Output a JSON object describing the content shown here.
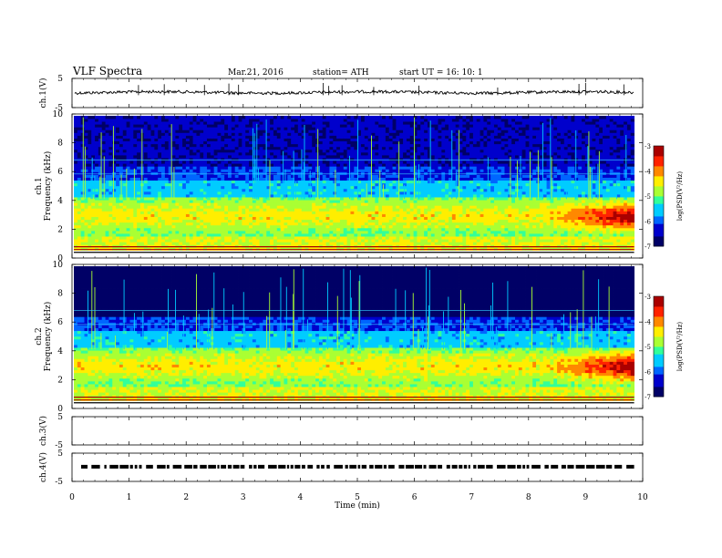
{
  "header": {
    "title": "VLF  Spectra",
    "date": "Mar.21, 2016",
    "station": "station= ATH",
    "start": "start  UT  =    16: 10: 1"
  },
  "chart_data": {
    "type": "heatmap",
    "x": {
      "label": "Time  (min)",
      "ticks": [
        "0",
        "1",
        "2",
        "3",
        "4",
        "5",
        "6",
        "7",
        "8",
        "9",
        "10"
      ],
      "range": [
        0,
        10
      ],
      "data_end": 9.85
    },
    "panels": [
      {
        "id": "ch1v",
        "kind": "waveform",
        "ylabel": "ch.1(V)",
        "yticks": [
          "5",
          "-5"
        ],
        "ylim": [
          -5,
          5
        ],
        "level": 0.2
      },
      {
        "id": "ch1",
        "kind": "spectrogram",
        "ylabel": "ch.1\nFrequency  (kHz)",
        "ylabel_lines": [
          "ch.1",
          "Frequency  (kHz)"
        ],
        "yticks": [
          "0",
          "2",
          "4",
          "6",
          "8",
          "10"
        ],
        "ylim": [
          0,
          10
        ],
        "colorbar": {
          "label": "log(PSD(V²/Hz)",
          "ticks": [
            "-3",
            "-4",
            "-5",
            "-6",
            "-7"
          ],
          "range": [
            -7,
            -3
          ]
        }
      },
      {
        "id": "ch2",
        "kind": "spectrogram",
        "ylabel": "ch.2\nFrequency  (kHz)",
        "ylabel_lines": [
          "ch.2",
          "Frequency  (kHz)"
        ],
        "yticks": [
          "0",
          "2",
          "4",
          "6",
          "8",
          "10"
        ],
        "ylim": [
          0,
          10
        ],
        "colorbar": {
          "label": "log(PSD(V²/Hz)",
          "ticks": [
            "-3",
            "-4",
            "-5",
            "-6",
            "-7"
          ],
          "range": [
            -7,
            -3
          ]
        }
      },
      {
        "id": "ch3v",
        "kind": "waveform",
        "ylabel": "ch.3(V)",
        "yticks": [
          "5",
          "-5"
        ],
        "ylim": [
          -5,
          5
        ]
      },
      {
        "id": "ch4v",
        "kind": "waveform",
        "ylabel": "ch.4(V)",
        "yticks": [
          "5",
          "-5"
        ],
        "ylim": [
          -5,
          5
        ],
        "level": 0.2
      }
    ],
    "colormap": [
      "#000066",
      "#0000cc",
      "#0066ff",
      "#00ccff",
      "#33ff99",
      "#aaff33",
      "#ffee00",
      "#ff8800",
      "#ff2200",
      "#aa0000"
    ]
  }
}
